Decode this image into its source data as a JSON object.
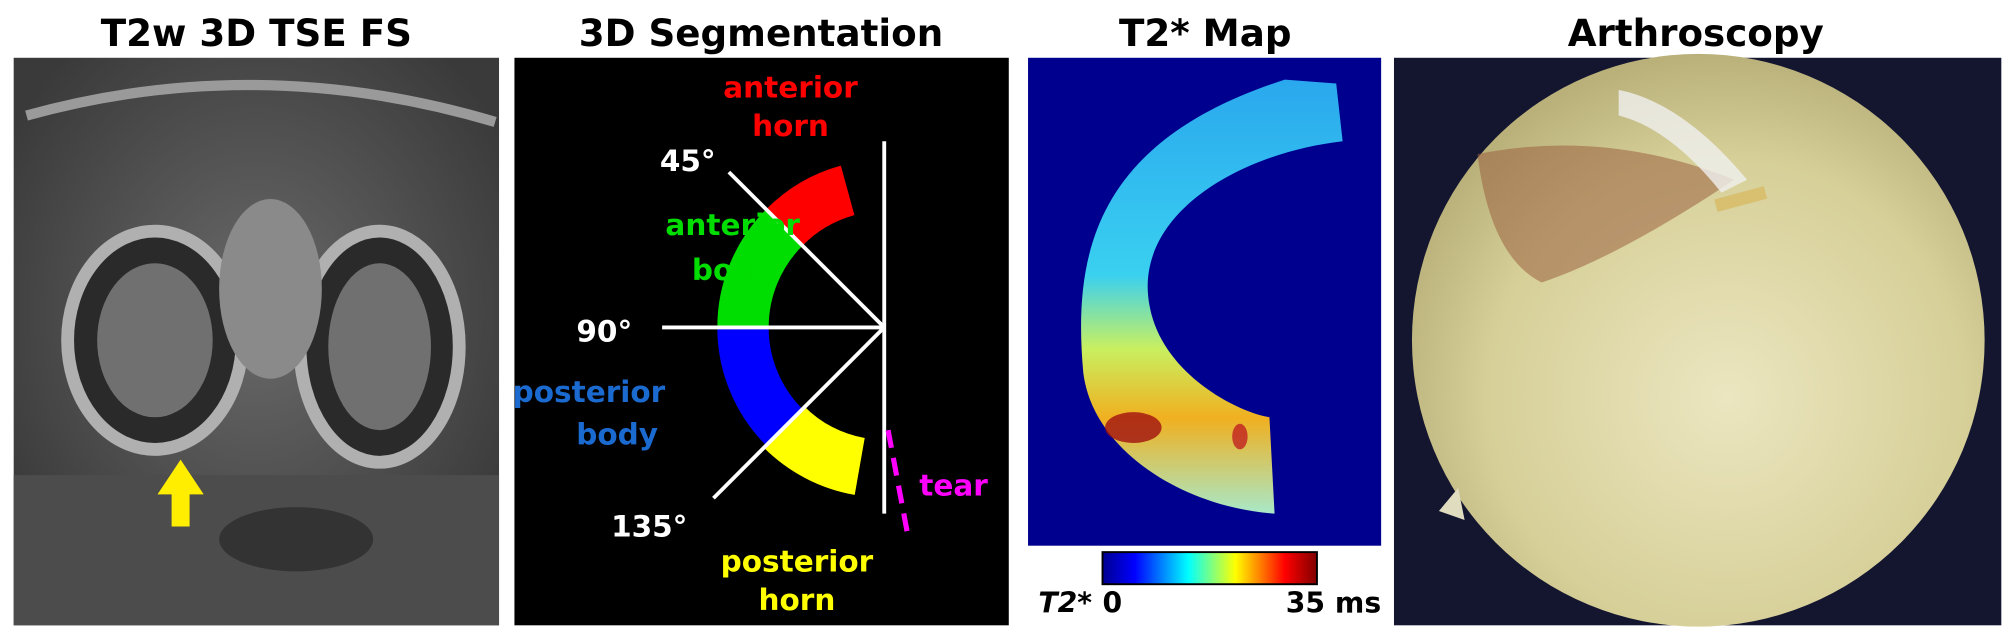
{
  "panels": [
    {
      "title": "T2w 3D TSE FS"
    },
    {
      "title": "3D Segmentation",
      "labels": {
        "anterior_horn": [
          "anterior",
          "horn"
        ],
        "angle_45": "45°",
        "anterior_body": [
          "anterior",
          "body"
        ],
        "angle_90": "90°",
        "posterior_body": [
          "posterior",
          "body"
        ],
        "angle_135": "135°",
        "tear": "tear",
        "posterior_horn": [
          "posterior",
          "horn"
        ]
      }
    },
    {
      "title": "T2* Map",
      "colorbar": {
        "label": "T2*",
        "min": "0",
        "max": "35 ms"
      }
    },
    {
      "title": "Arthroscopy"
    }
  ]
}
